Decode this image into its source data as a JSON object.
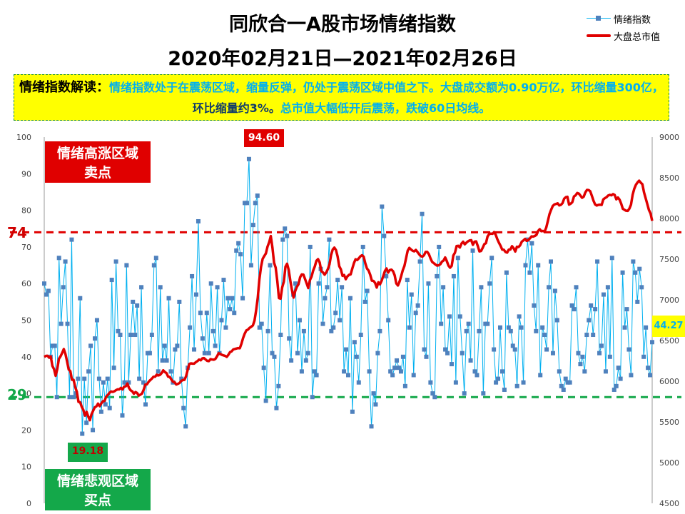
{
  "header": {
    "title": "同欣合一A股市场情绪指数",
    "date_range": "2020年02月21日—2021年02月26日"
  },
  "legend": {
    "sentiment": "情绪指数",
    "market_cap": "大盘总市值"
  },
  "interpretation": {
    "heading": "情绪指数解读：",
    "part1": "情绪指数处于在震荡区域，缩量反弹，仍处于震荡区域中值之下。大盘成交额为0.90万亿，环比缩量300亿，",
    "part2": "环比缩量约3%。",
    "part3": "总市值大幅低开后震荡，跌破60日均线。"
  },
  "zones": {
    "high_line1": "情绪高涨区域",
    "high_line2": "卖点",
    "low_line1": "情绪悲观区域",
    "low_line2": "买点"
  },
  "levels": {
    "upper": "74",
    "lower": "29"
  },
  "callouts": {
    "max": "94.60",
    "min": "19.18",
    "last": "44.27"
  },
  "colors": {
    "sentiment_line": "#00b0f0",
    "sentiment_marker": "#4f81bd",
    "market_cap_line": "#e00000",
    "high_zone": "#e00000",
    "low_zone": "#14a84a"
  },
  "chart_data": {
    "type": "line",
    "title": "同欣合一A股市场情绪指数",
    "subtitle": "2020年02月21日—2021年02月26日",
    "left_axis": {
      "ylim": [
        0,
        100
      ],
      "ticks": [
        "0",
        "10",
        "20",
        "30",
        "40",
        "50",
        "60",
        "70",
        "80",
        "90",
        "100"
      ]
    },
    "right_axis": {
      "ylim": [
        4500,
        9000
      ],
      "ticks": [
        "4500",
        "5000",
        "5500",
        "6000",
        "6500",
        "7000",
        "7500",
        "8000",
        "8500",
        "9000"
      ]
    },
    "reference_lines": [
      {
        "value": 74,
        "label": "74",
        "color": "#e00000",
        "style": "dashed"
      },
      {
        "value": 29,
        "label": "29",
        "color": "#14a84a",
        "style": "dashed"
      }
    ],
    "legend_position": "top-right",
    "grid": false,
    "series": [
      {
        "name": "情绪指数",
        "axis": "left",
        "values": [
          60,
          57,
          58,
          40,
          43,
          43,
          29,
          67,
          49,
          59,
          66,
          49,
          29,
          72,
          29,
          30,
          34,
          56,
          19,
          34,
          22,
          36,
          43,
          20,
          45,
          50,
          34,
          25,
          33,
          27,
          34,
          26,
          61,
          37,
          66,
          47,
          46,
          24,
          33,
          65,
          33,
          46,
          55,
          46,
          54,
          34,
          59,
          33,
          27,
          41,
          41,
          46,
          65,
          67,
          36,
          59,
          39,
          43,
          39,
          56,
          36,
          33,
          42,
          43,
          55,
          34,
          26,
          21,
          37,
          48,
          62,
          42,
          57,
          77,
          52,
          45,
          41,
          52,
          41,
          60,
          47,
          43,
          59,
          41,
          50,
          61,
          48,
          56,
          53,
          56,
          52,
          69,
          71,
          68,
          56,
          82,
          82,
          94,
          65,
          76,
          82,
          84,
          48,
          49,
          37,
          28,
          47,
          65,
          41,
          40,
          26,
          32,
          46,
          72,
          75,
          73,
          45,
          39,
          57,
          60,
          41,
          50,
          36,
          47,
          39,
          41,
          70,
          29,
          36,
          35,
          60,
          64,
          49,
          56,
          59,
          72,
          47,
          48,
          52,
          61,
          50,
          59,
          36,
          42,
          35,
          56,
          25,
          44,
          40,
          33,
          46,
          70,
          55,
          58,
          36,
          21,
          30,
          27,
          41,
          47,
          81,
          73,
          62,
          50,
          36,
          35,
          37,
          39,
          37,
          36,
          40,
          32,
          61,
          48,
          57,
          35,
          52,
          54,
          66,
          79,
          42,
          40,
          60,
          33,
          30,
          29,
          62,
          70,
          49,
          59,
          42,
          41,
          51,
          38,
          62,
          33,
          67,
          51,
          41,
          30,
          47,
          49,
          39,
          69,
          36,
          35,
          47,
          59,
          30,
          49,
          49,
          60,
          67,
          42,
          33,
          34,
          48,
          36,
          31,
          63,
          48,
          47,
          43,
          42,
          32,
          51,
          48,
          33,
          65,
          72,
          63,
          71,
          54,
          47,
          65,
          35,
          48,
          46,
          42,
          59,
          66,
          41,
          58,
          50,
          36,
          32,
          31,
          34,
          33,
          33,
          54,
          53,
          59,
          41,
          38,
          40,
          36,
          46,
          50,
          54,
          46,
          53,
          66,
          41,
          43,
          57,
          36,
          59,
          40,
          67,
          31,
          32,
          37,
          34,
          63,
          48,
          53,
          42,
          35,
          66,
          63,
          55,
          64,
          59,
          40,
          48,
          37,
          35,
          44
        ]
      },
      {
        "name": "大盘总市值",
        "axis": "right",
        "values": [
          6298,
          6311,
          6313,
          6290,
          6304,
          6188,
          6148,
          6066,
          6149,
          6275,
          6306,
          6348,
          6395,
          6335,
          6243,
          6144,
          6124,
          6018,
          6017,
          5929,
          5870,
          5746,
          5743,
          5686,
          5647,
          5577,
          5623,
          5566,
          5521,
          5593,
          5637,
          5680,
          5691,
          5725,
          5693,
          5727,
          5755,
          5757,
          5811,
          5831,
          5857,
          5874,
          5869,
          5876,
          5890,
          5900,
          5899,
          5918,
          5899,
          5933,
          5937,
          5972,
          5918,
          5888,
          5876,
          5846,
          5867,
          5855,
          5823,
          5835,
          5848,
          5895,
          5958,
          5961,
          5992,
          6013,
          6031,
          6055,
          6055,
          6080,
          6071,
          6077,
          6099,
          6134,
          6113,
          6100,
          6056,
          6053,
          6021,
          5994,
          5988,
          5959,
          5967,
          5978,
          6002,
          6014,
          6016,
          6060,
          6139,
          6212,
          6219,
          6216,
          6216,
          6234,
          6247,
          6266,
          6257,
          6281,
          6284,
          6267,
          6250,
          6247,
          6271,
          6267,
          6264,
          6274,
          6305,
          6344,
          6335,
          6324,
          6317,
          6311,
          6299,
          6325,
          6358,
          6367,
          6391,
          6396,
          6402,
          6407,
          6405,
          6461,
          6531,
          6584,
          6624,
          6634,
          6656,
          6669,
          6685,
          6744,
          6869,
          7025,
          7251,
          7404,
          7503,
          7538,
          7571,
          7654,
          7707,
          7784,
          7643,
          7457,
          7395,
          7230,
          7021,
          7014,
          7153,
          7222,
          7406,
          7443,
          7367,
          7233,
          7117,
          7028,
          7109,
          7159,
          7191,
          7277,
          7312,
          7310,
          7257,
          7202,
          7144,
          7242,
          7285,
          7359,
          7410,
          7480,
          7500,
          7459,
          7351,
          7337,
          7309,
          7336,
          7377,
          7435,
          7551,
          7618,
          7642,
          7611,
          7532,
          7413,
          7374,
          7295,
          7305,
          7253,
          7288,
          7307,
          7312,
          7384,
          7450,
          7498,
          7489,
          7510,
          7535,
          7548,
          7529,
          7448,
          7385,
          7360,
          7308,
          7236,
          7233,
          7208,
          7151,
          7216,
          7191,
          7234,
          7292,
          7354,
          7386,
          7335,
          7366,
          7371,
          7352,
          7302,
          7201,
          7176,
          7224,
          7292,
          7365,
          7417,
          7511,
          7604,
          7638,
          7619,
          7603,
          7596,
          7613,
          7588,
          7560,
          7538,
          7530,
          7548,
          7589,
          7589,
          7561,
          7509,
          7466,
          7451,
          7434,
          7421,
          7424,
          7437,
          7469,
          7483,
          7521,
          7476,
          7421,
          7395,
          7418,
          7545,
          7579,
          7661,
          7664,
          7643,
          7691,
          7714,
          7682,
          7702,
          7719,
          7730,
          7733,
          7676,
          7714,
          7718,
          7662,
          7595,
          7600,
          7639,
          7684,
          7696,
          7779,
          7808,
          7814,
          7811,
          7832,
          7799,
          7745,
          7701,
          7663,
          7617,
          7615,
          7588,
          7580,
          7616,
          7618,
          7659,
          7634,
          7594,
          7652,
          7649,
          7671,
          7715,
          7730,
          7748,
          7725,
          7734,
          7756,
          7780,
          7777,
          7785,
          7798,
          7846,
          7868,
          7843,
          7847,
          7838,
          7888,
          7969,
          8054,
          8106,
          8153,
          8172,
          8178,
          8186,
          8160,
          8167,
          8188,
          8243,
          8261,
          8266,
          8170,
          8181,
          8200,
          8270,
          8284,
          8313,
          8306,
          8280,
          8254,
          8268,
          8320,
          8351,
          8349,
          8334,
          8278,
          8218,
          8172,
          8159,
          8167,
          8169,
          8166,
          8234,
          8250,
          8261,
          8282,
          8290,
          8284,
          8299,
          8289,
          8235,
          8257,
          8231,
          8181,
          8118,
          8106,
          8095,
          8093,
          8120,
          8169,
          8290,
          8364,
          8413,
          8442,
          8464,
          8440,
          8420,
          8320,
          8249,
          8177,
          8104,
          8061,
          7970
        ]
      }
    ]
  }
}
